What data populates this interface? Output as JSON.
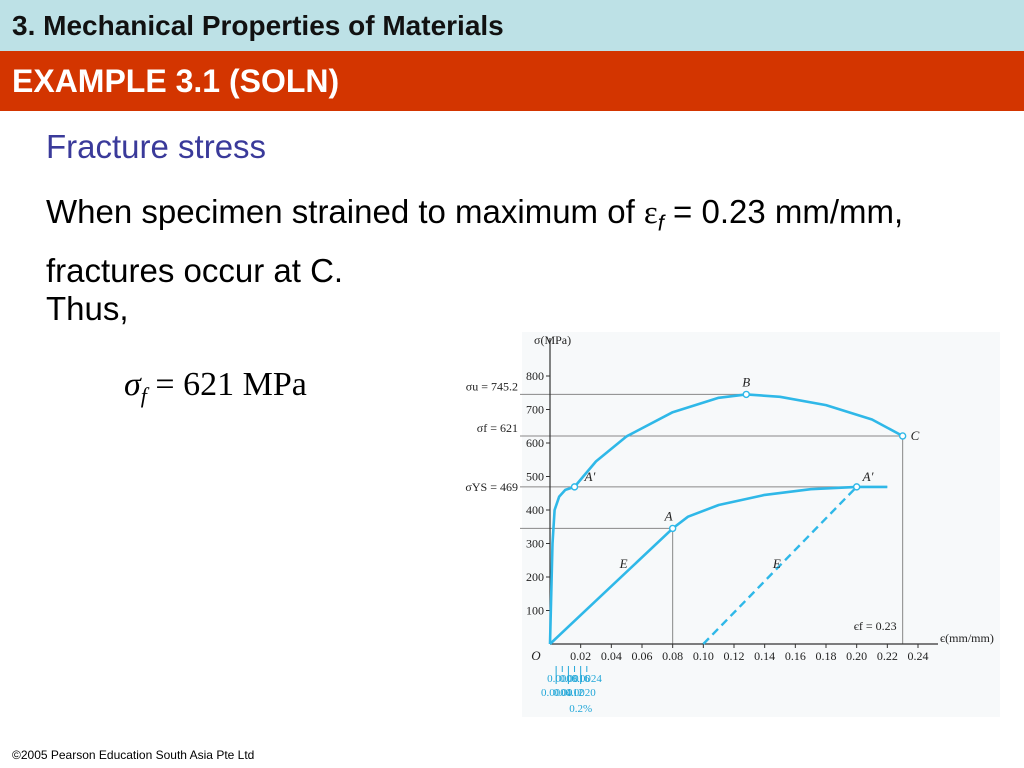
{
  "slide": {
    "title": "3. Mechanical Properties of Materials",
    "subtitle": "EXAMPLE 3.1 (SOLN)",
    "heading": "Fracture stress",
    "para_part1": "When specimen strained to maximum of ",
    "para_eps": "ε",
    "para_eps_sub": "f",
    "para_part2": " = 0.23 mm/mm, fractures occur at C.",
    "thus": "Thus,",
    "formula_sigma": "σ",
    "formula_sub": "f",
    "formula_rest": " = 621 MPa",
    "footer": "©2005 Pearson Education South Asia Pte Ltd"
  },
  "chart_data": {
    "type": "line",
    "ylabel": "σ(MPa)",
    "xlabel": "є(mm/mm)",
    "origin_label": "O",
    "xlim": [
      0,
      0.24
    ],
    "ylim": [
      0,
      800
    ],
    "x_ticks": [
      0.02,
      0.04,
      0.06,
      0.08,
      0.1,
      0.12,
      0.14,
      0.16,
      0.18,
      0.2,
      0.22,
      0.24
    ],
    "x_tick_labels": [
      "0.02",
      "0.04",
      "0.06",
      "0.08",
      "0.10",
      "0.12",
      "0.14",
      "0.16",
      "0.18",
      "0.20",
      "0.22",
      "0.24"
    ],
    "y_ticks": [
      100,
      200,
      300,
      400,
      500,
      600,
      700,
      800
    ],
    "y_tick_labels": [
      "100",
      "200",
      "300",
      "400",
      "500",
      "600",
      "700",
      "800"
    ],
    "blue_ticks_upper": [
      {
        "x": 0.0008,
        "label": "0.0008"
      },
      {
        "x": 0.0016,
        "label": "0.0016"
      },
      {
        "x": 0.0024,
        "label": "0.0024"
      }
    ],
    "blue_ticks_lower": [
      {
        "x": 0.0004,
        "label": "0.0004"
      },
      {
        "x": 0.0012,
        "label": "0.0012"
      },
      {
        "x": 0.002,
        "label": "0.0020"
      }
    ],
    "offset_label": "0.2%",
    "annotations": {
      "sigma_u": "σu = 745.2",
      "sigma_f": "σf = 621",
      "sigma_ys": "σYS = 469",
      "eps_f": "єf = 0.23"
    },
    "points": {
      "B": {
        "label": "B",
        "x": 0.128,
        "y": 745
      },
      "C": {
        "label": "C",
        "x": 0.23,
        "y": 621
      },
      "A_prime_upper": {
        "label": "A′",
        "x": 0.016,
        "y": 469
      },
      "A_lower": {
        "label": "A",
        "x": 0.08,
        "y": 345
      },
      "A_prime_lower": {
        "label": "A′",
        "x": 0.2,
        "y": 469
      },
      "E_upper": {
        "label": "E",
        "x": 0.048,
        "y": 215
      },
      "E_lower": {
        "label": "E",
        "x": 0.148,
        "y": 215
      }
    },
    "series": [
      {
        "name": "",
        "color": "#2fb8e8",
        "x": [
          0.0,
          0.0016,
          0.003,
          0.006,
          0.01,
          0.016,
          0.03,
          0.05,
          0.08,
          0.11,
          0.128,
          0.15,
          0.18,
          0.21,
          0.23
        ],
        "y": [
          0,
          300,
          400,
          440,
          460,
          469,
          545,
          620,
          692,
          735,
          745,
          738,
          713,
          670,
          621
        ]
      },
      {
        "name": "",
        "color": "#2fb8e8",
        "x": [
          0.0,
          0.08,
          0.09,
          0.11,
          0.14,
          0.17,
          0.2,
          0.22
        ],
        "y": [
          0,
          345,
          380,
          415,
          445,
          462,
          469,
          469
        ]
      }
    ],
    "offset_line": {
      "color": "#2fb8e8",
      "dashed": true,
      "x": [
        0.1,
        0.2
      ],
      "y": [
        0,
        469
      ]
    }
  }
}
